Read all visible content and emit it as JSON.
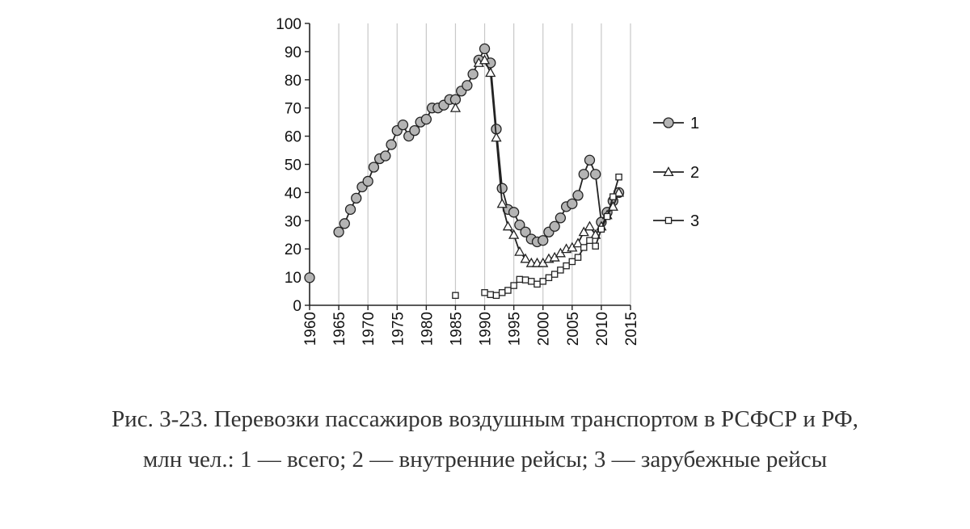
{
  "chart_data": {
    "type": "line",
    "xlim": [
      1960,
      2015
    ],
    "ylim": [
      0,
      100
    ],
    "x_ticks": [
      1960,
      1965,
      1970,
      1975,
      1980,
      1985,
      1990,
      1995,
      2000,
      2005,
      2010,
      2015
    ],
    "y_ticks": [
      0,
      10,
      20,
      30,
      40,
      50,
      60,
      70,
      80,
      90,
      100
    ],
    "grid": "vertical",
    "legend": "right",
    "series": [
      {
        "name": "1",
        "marker": "circle",
        "points": [
          [
            1960,
            9.8
          ],
          [
            1965,
            26
          ],
          [
            1966,
            29
          ],
          [
            1967,
            34
          ],
          [
            1968,
            38
          ],
          [
            1969,
            42
          ],
          [
            1970,
            44
          ],
          [
            1971,
            49
          ],
          [
            1972,
            52
          ],
          [
            1973,
            53
          ],
          [
            1974,
            57
          ],
          [
            1975,
            62
          ],
          [
            1976,
            64
          ],
          [
            1977,
            60
          ],
          [
            1978,
            62
          ],
          [
            1979,
            65
          ],
          [
            1980,
            66
          ],
          [
            1981,
            70
          ],
          [
            1982,
            70
          ],
          [
            1983,
            71
          ],
          [
            1984,
            73
          ],
          [
            1985,
            73
          ],
          [
            1986,
            76
          ],
          [
            1987,
            78
          ],
          [
            1988,
            82
          ],
          [
            1989,
            87
          ],
          [
            1990,
            91
          ],
          [
            1991,
            86
          ],
          [
            1992,
            62.5
          ],
          [
            1993,
            41.5
          ],
          [
            1994,
            34
          ],
          [
            1995,
            33
          ],
          [
            1996,
            28.5
          ],
          [
            1997,
            26
          ],
          [
            1998,
            23.5
          ],
          [
            1999,
            22.5
          ],
          [
            2000,
            23
          ],
          [
            2001,
            26
          ],
          [
            2002,
            28
          ],
          [
            2003,
            31
          ],
          [
            2004,
            35
          ],
          [
            2005,
            36
          ],
          [
            2006,
            39
          ],
          [
            2007,
            46.5
          ],
          [
            2008,
            51.5
          ],
          [
            2009,
            46.5
          ],
          [
            2010,
            29.5
          ],
          [
            2011,
            33
          ],
          [
            2012,
            37
          ],
          [
            2013,
            40
          ]
        ]
      },
      {
        "name": "2",
        "marker": "triangle",
        "points": [
          [
            1985,
            70
          ],
          [
            1989,
            86
          ],
          [
            1990,
            87
          ],
          [
            1991,
            82.5
          ],
          [
            1992,
            59.5
          ],
          [
            1993,
            36
          ],
          [
            1994,
            28
          ],
          [
            1995,
            25
          ],
          [
            1996,
            19
          ],
          [
            1997,
            16.5
          ],
          [
            1998,
            15
          ],
          [
            1999,
            15
          ],
          [
            2000,
            15
          ],
          [
            2001,
            16.5
          ],
          [
            2002,
            17
          ],
          [
            2003,
            18.5
          ],
          [
            2004,
            20
          ],
          [
            2005,
            20.5
          ],
          [
            2006,
            22
          ],
          [
            2007,
            26
          ],
          [
            2008,
            28
          ],
          [
            2009,
            25
          ],
          [
            2010,
            28
          ],
          [
            2011,
            32
          ],
          [
            2012,
            35
          ],
          [
            2013,
            40
          ]
        ]
      },
      {
        "name": "3",
        "marker": "square",
        "points": [
          [
            1985,
            3.5
          ],
          [
            1990,
            4.5
          ],
          [
            1991,
            3.8
          ],
          [
            1992,
            3.5
          ],
          [
            1993,
            4.5
          ],
          [
            1994,
            5.3
          ],
          [
            1995,
            7
          ],
          [
            1996,
            9.2
          ],
          [
            1997,
            9
          ],
          [
            1998,
            8.5
          ],
          [
            1999,
            7.5
          ],
          [
            2000,
            8.5
          ],
          [
            2001,
            9.8
          ],
          [
            2002,
            11
          ],
          [
            2003,
            12.5
          ],
          [
            2004,
            14
          ],
          [
            2005,
            15.5
          ],
          [
            2006,
            17
          ],
          [
            2007,
            20.5
          ],
          [
            2008,
            23
          ],
          [
            2009,
            21
          ],
          [
            2010,
            27
          ],
          [
            2011,
            31.5
          ],
          [
            2012,
            38.5
          ],
          [
            2013,
            45.5
          ]
        ]
      }
    ]
  },
  "caption": {
    "line1": "Рис. 3-23. Перевозки пассажиров воздушным транспортом в РСФСР и РФ,",
    "line2": "млн чел.: 1 — всего; 2 — внутренние рейсы; 3 — зарубежные рейсы"
  }
}
